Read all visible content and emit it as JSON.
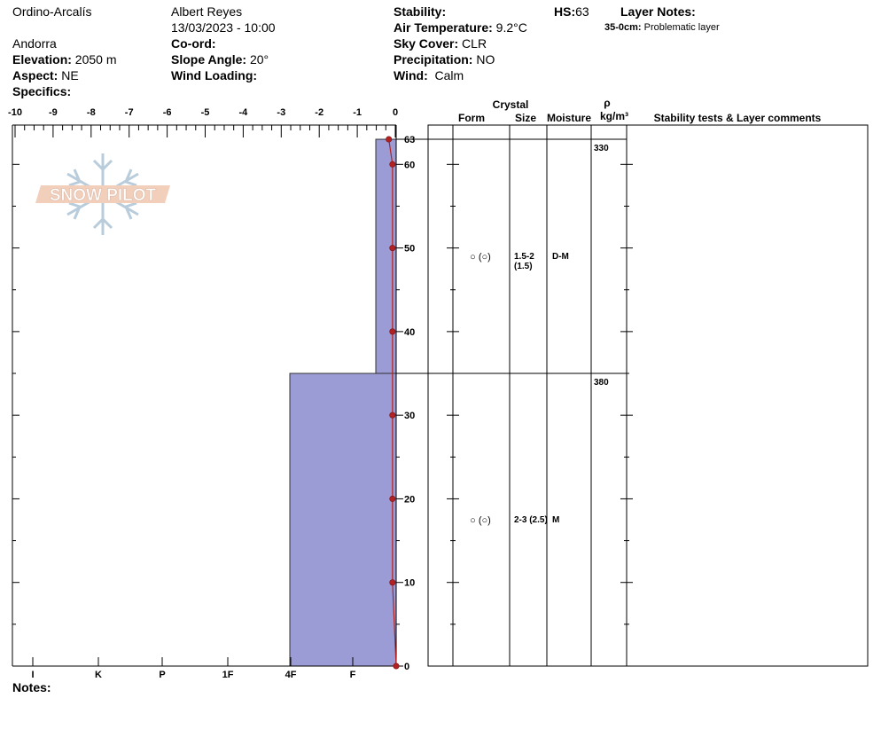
{
  "header": {
    "location": "Ordino-Arcalís",
    "observer": "Albert Reyes",
    "datetime": "13/03/2023 - 10:00",
    "country": "Andorra",
    "elevation_label": "Elevation:",
    "elevation": "2050 m",
    "aspect_label": "Aspect:",
    "aspect": "NE",
    "specifics_label": "Specifics:",
    "coord_label": "Co-ord:",
    "slope_label": "Slope Angle:",
    "slope": "20°",
    "wind_loading_label": "Wind Loading:",
    "stability_label": "Stability:",
    "air_temp_label": "Air Temperature:",
    "air_temp": "9.2°C",
    "sky_label": "Sky Cover:",
    "sky": "CLR",
    "precip_label": "Precipitation:",
    "precip": "NO",
    "wind_label": "Wind:",
    "wind": "Calm",
    "hs_label": "HS:",
    "hs": "63",
    "layer_notes_label": "Layer Notes:",
    "layer_note_depth": "35-0cm:",
    "layer_note_text": "Problematic layer",
    "notes_label": "Notes:"
  },
  "logo_text": "SNOW PILOT",
  "colors": {
    "hardness_fill": "#9b9bd6",
    "temp_line": "#b22222",
    "temp_marker": "#b22222"
  },
  "chart_data": {
    "type": "area",
    "temp_axis": {
      "ticks": [
        "-10",
        "-9",
        "-8",
        "-7",
        "-6",
        "-5",
        "-4",
        "-3",
        "-2",
        "-1",
        "0"
      ],
      "range": [
        -10,
        0
      ]
    },
    "hardness_axis": {
      "labels": [
        "I",
        "K",
        "P",
        "1F",
        "4F",
        "F"
      ]
    },
    "height_axis": {
      "ticks": [
        "0",
        "10",
        "20",
        "30",
        "40",
        "50",
        "60",
        "63"
      ],
      "range": [
        0,
        63
      ]
    },
    "hardness_profile": [
      {
        "top": 63,
        "bottom": 35,
        "hardness": "F-"
      },
      {
        "top": 35,
        "bottom": 0,
        "hardness": "4F+"
      }
    ],
    "temperature_profile": [
      {
        "height": 63,
        "temp": -0.2
      },
      {
        "height": 60,
        "temp": -0.1
      },
      {
        "height": 50,
        "temp": -0.1
      },
      {
        "height": 40,
        "temp": -0.1
      },
      {
        "height": 30,
        "temp": -0.1
      },
      {
        "height": 20,
        "temp": -0.1
      },
      {
        "height": 10,
        "temp": -0.1
      },
      {
        "height": 0,
        "temp": 0.0
      }
    ],
    "table_headers": {
      "crystal": "Crystal",
      "form": "Form",
      "size": "Size",
      "moisture": "Moisture",
      "rho": "ρ",
      "density_unit": "kg/m³",
      "comments": "Stability tests & Layer comments"
    },
    "layers": [
      {
        "top": 63,
        "bottom": 35,
        "form": "○ (○)",
        "size": "1.5-2",
        "size2": "(1.5)",
        "moisture": "D-M",
        "density": "330"
      },
      {
        "top": 35,
        "bottom": 0,
        "form": "○ (○)",
        "size": "2-3 (2.5)",
        "size2": "",
        "moisture": "M",
        "density": "380"
      }
    ]
  }
}
